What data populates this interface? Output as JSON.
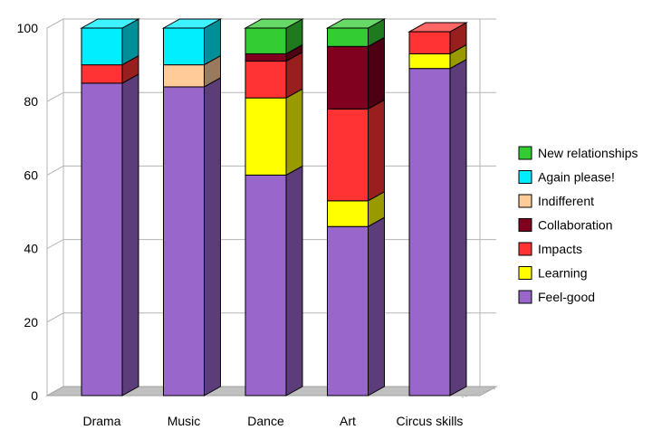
{
  "chart_data": {
    "type": "bar",
    "stacked": true,
    "three_d": true,
    "categories": [
      "Drama",
      "Music",
      "Dance",
      "Art",
      "Circus skills"
    ],
    "ylim": [
      0,
      100
    ],
    "yticks": [
      0,
      20,
      40,
      60,
      80,
      100
    ],
    "grid": "horizontal",
    "legend_position": "right",
    "series": [
      {
        "name": "Feel-good",
        "color": "#9966cc",
        "values": [
          85,
          84,
          60,
          46,
          89
        ]
      },
      {
        "name": "Learning",
        "color": "#ffff00",
        "values": [
          0,
          0,
          21,
          7,
          4
        ]
      },
      {
        "name": "Impacts",
        "color": "#ff3333",
        "values": [
          5,
          0,
          10,
          25,
          6
        ]
      },
      {
        "name": "Collaboration",
        "color": "#800020",
        "values": [
          0,
          0,
          2,
          17,
          0
        ]
      },
      {
        "name": "Indifferent",
        "color": "#ffcc99",
        "values": [
          0,
          6,
          0,
          0,
          0
        ]
      },
      {
        "name": "Again please!",
        "color": "#00eeff",
        "values": [
          10,
          10,
          0,
          0,
          0
        ]
      },
      {
        "name": "New relationships",
        "color": "#33cc33",
        "values": [
          0,
          0,
          7,
          5,
          0
        ]
      }
    ],
    "legend_order": [
      "New relationships",
      "Again please!",
      "Indifferent",
      "Collaboration",
      "Impacts",
      "Learning",
      "Feel-good"
    ]
  }
}
